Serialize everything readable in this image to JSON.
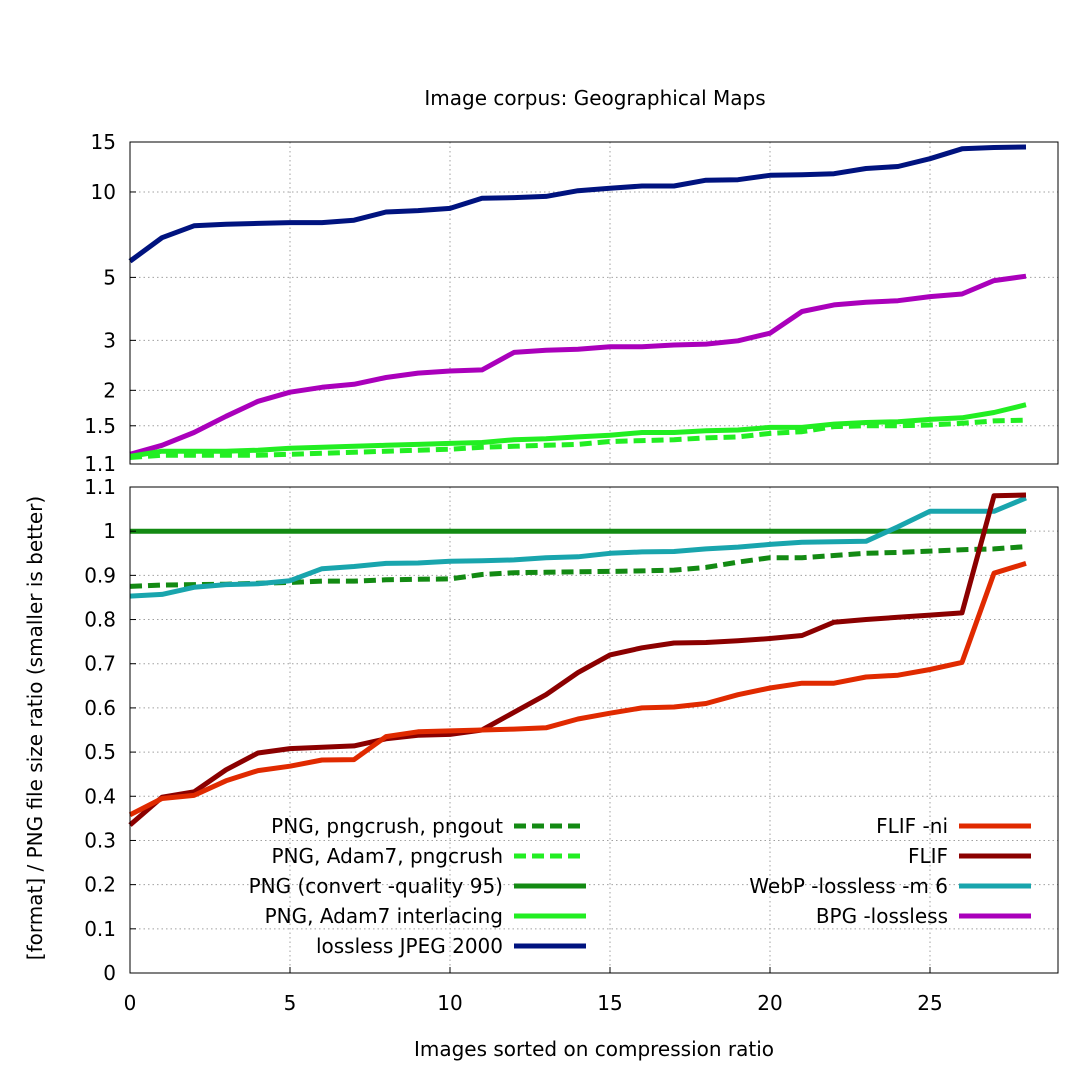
{
  "chart_data": {
    "type": "line",
    "title": "Image corpus: Geographical Maps",
    "xlabel": "Images sorted on compression ratio",
    "ylabel": "[format] / PNG file size ratio (smaller is better)",
    "xlim": [
      0,
      29
    ],
    "x_ticks": [
      0,
      5,
      10,
      15,
      20,
      25
    ],
    "panels": {
      "top": {
        "scale": "log",
        "ylim": [
          1.1,
          15
        ],
        "y_ticks": [
          1.1,
          1.5,
          2,
          3,
          5,
          10,
          15
        ]
      },
      "bottom": {
        "scale": "linear",
        "ylim": [
          0,
          1.1
        ],
        "y_ticks": [
          0,
          0.1,
          0.2,
          0.3,
          0.4,
          0.5,
          0.6,
          0.7,
          0.8,
          0.9,
          1,
          1.1
        ]
      }
    },
    "series": [
      {
        "name": "lossless JPEG 2000",
        "color": "#00137f",
        "dash": "solid",
        "values": [
          5.7,
          6.9,
          7.6,
          7.7,
          7.75,
          7.8,
          7.8,
          7.95,
          8.5,
          8.6,
          8.75,
          9.5,
          9.55,
          9.65,
          10.1,
          10.3,
          10.5,
          10.5,
          11.0,
          11.05,
          11.45,
          11.5,
          11.6,
          12.1,
          12.3,
          13.1,
          14.2,
          14.35,
          14.4
        ]
      },
      {
        "name": "BPG -lossless",
        "color": "#aa00bb",
        "dash": "solid",
        "values": [
          1.19,
          1.28,
          1.42,
          1.62,
          1.83,
          1.97,
          2.05,
          2.1,
          2.22,
          2.3,
          2.34,
          2.36,
          2.72,
          2.77,
          2.79,
          2.85,
          2.85,
          2.89,
          2.91,
          2.99,
          3.18,
          3.79,
          4.0,
          4.09,
          4.14,
          4.28,
          4.37,
          4.87,
          5.05
        ]
      },
      {
        "name": "PNG, Adam7 interlacing",
        "color": "#22ee22",
        "dash": "solid",
        "values": [
          1.17,
          1.22,
          1.22,
          1.22,
          1.23,
          1.25,
          1.26,
          1.27,
          1.28,
          1.29,
          1.3,
          1.31,
          1.34,
          1.35,
          1.37,
          1.39,
          1.42,
          1.42,
          1.44,
          1.45,
          1.48,
          1.48,
          1.52,
          1.54,
          1.55,
          1.58,
          1.6,
          1.67,
          1.78
        ]
      },
      {
        "name": "PNG, Adam7, pngcrush",
        "color": "#22ee22",
        "dash": "dashed",
        "values": [
          1.16,
          1.18,
          1.18,
          1.18,
          1.18,
          1.19,
          1.2,
          1.21,
          1.22,
          1.23,
          1.24,
          1.26,
          1.27,
          1.28,
          1.29,
          1.32,
          1.33,
          1.34,
          1.36,
          1.37,
          1.41,
          1.43,
          1.49,
          1.5,
          1.5,
          1.51,
          1.53,
          1.56,
          1.57
        ]
      },
      {
        "name": "PNG (convert -quality 95)",
        "color": "#138a13",
        "dash": "solid",
        "values": [
          1,
          1,
          1,
          1,
          1,
          1,
          1,
          1,
          1,
          1,
          1,
          1,
          1,
          1,
          1,
          1,
          1,
          1,
          1,
          1,
          1,
          1,
          1,
          1,
          1,
          1,
          1,
          1,
          1
        ]
      },
      {
        "name": "PNG, pngcrush, pngout",
        "color": "#138a13",
        "dash": "dashed",
        "values": [
          0.875,
          0.878,
          0.879,
          0.88,
          0.882,
          0.884,
          0.887,
          0.887,
          0.89,
          0.891,
          0.892,
          0.902,
          0.906,
          0.907,
          0.908,
          0.909,
          0.91,
          0.912,
          0.918,
          0.93,
          0.94,
          0.94,
          0.945,
          0.95,
          0.952,
          0.955,
          0.958,
          0.96,
          0.965
        ]
      },
      {
        "name": "WebP -lossless -m 6",
        "color": "#19a5ad",
        "dash": "solid",
        "values": [
          0.853,
          0.857,
          0.873,
          0.879,
          0.881,
          0.888,
          0.915,
          0.92,
          0.927,
          0.928,
          0.932,
          0.933,
          0.935,
          0.94,
          0.942,
          0.95,
          0.953,
          0.954,
          0.96,
          0.964,
          0.97,
          0.975,
          0.976,
          0.977,
          1.01,
          1.045,
          1.045,
          1.045,
          1.075
        ]
      },
      {
        "name": "FLIF",
        "color": "#8b0000",
        "dash": "solid",
        "values": [
          0.335,
          0.398,
          0.41,
          0.46,
          0.498,
          0.508,
          0.511,
          0.514,
          0.53,
          0.538,
          0.54,
          0.55,
          0.59,
          0.63,
          0.68,
          0.72,
          0.736,
          0.747,
          0.748,
          0.752,
          0.757,
          0.764,
          0.794,
          0.8,
          0.805,
          0.81,
          0.815,
          1.08,
          1.082
        ]
      },
      {
        "name": "FLIF -ni",
        "color": "#e02a00",
        "dash": "solid",
        "values": [
          0.358,
          0.395,
          0.402,
          0.435,
          0.458,
          0.468,
          0.482,
          0.483,
          0.535,
          0.546,
          0.548,
          0.55,
          0.552,
          0.555,
          0.575,
          0.588,
          0.6,
          0.602,
          0.61,
          0.63,
          0.645,
          0.656,
          0.656,
          0.67,
          0.674,
          0.687,
          0.703,
          0.905,
          0.927
        ]
      }
    ],
    "legend": {
      "left_column": [
        "PNG, pngcrush, pngout",
        "PNG, Adam7, pngcrush",
        "PNG (convert -quality 95)",
        "PNG, Adam7 interlacing",
        "lossless JPEG 2000"
      ],
      "right_column": [
        "FLIF -ni",
        "FLIF",
        "WebP -lossless -m 6",
        "BPG -lossless"
      ],
      "placement": "bottom-center"
    }
  }
}
